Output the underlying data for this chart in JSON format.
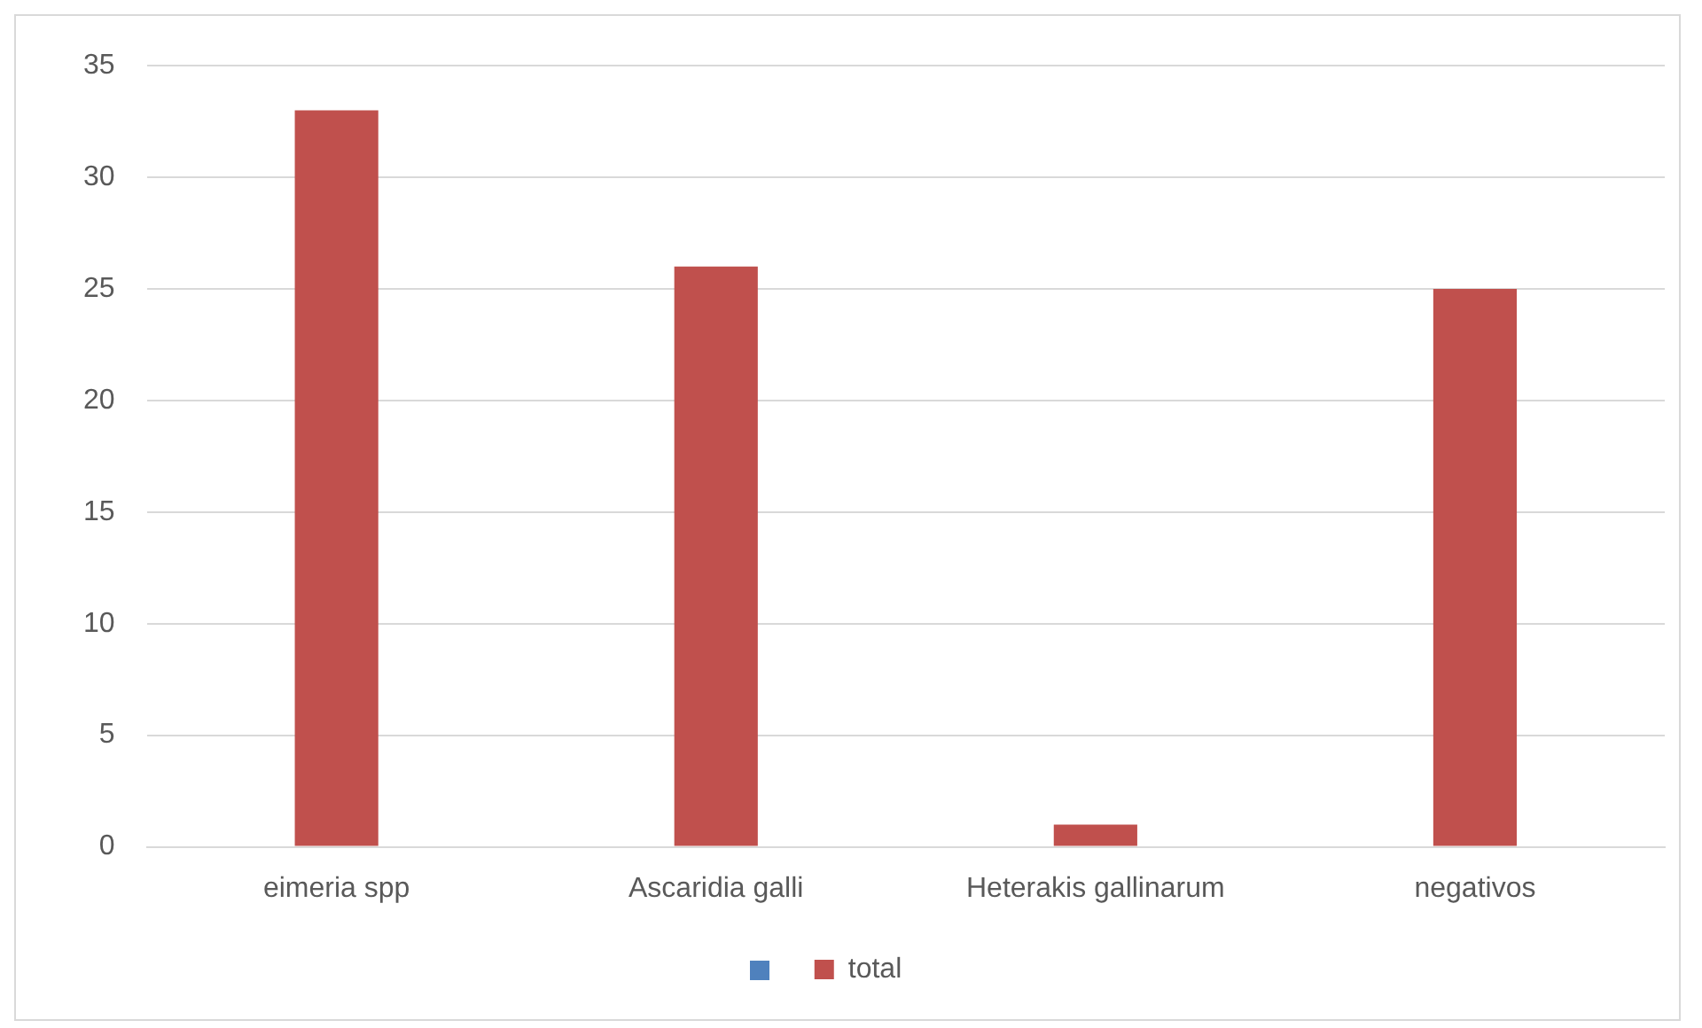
{
  "chart_data": {
    "type": "bar",
    "categories": [
      "eimeria spp",
      "Ascaridia galli",
      "Heterakis gallinarum",
      "negativos"
    ],
    "series": [
      {
        "name": "total",
        "color": "#c0504d",
        "values": [
          33,
          26,
          1,
          25
        ]
      }
    ],
    "ylim": [
      0,
      35
    ],
    "yticks": [
      0,
      5,
      10,
      15,
      20,
      25,
      30,
      35
    ],
    "grid": "y",
    "legend": "bottom"
  }
}
